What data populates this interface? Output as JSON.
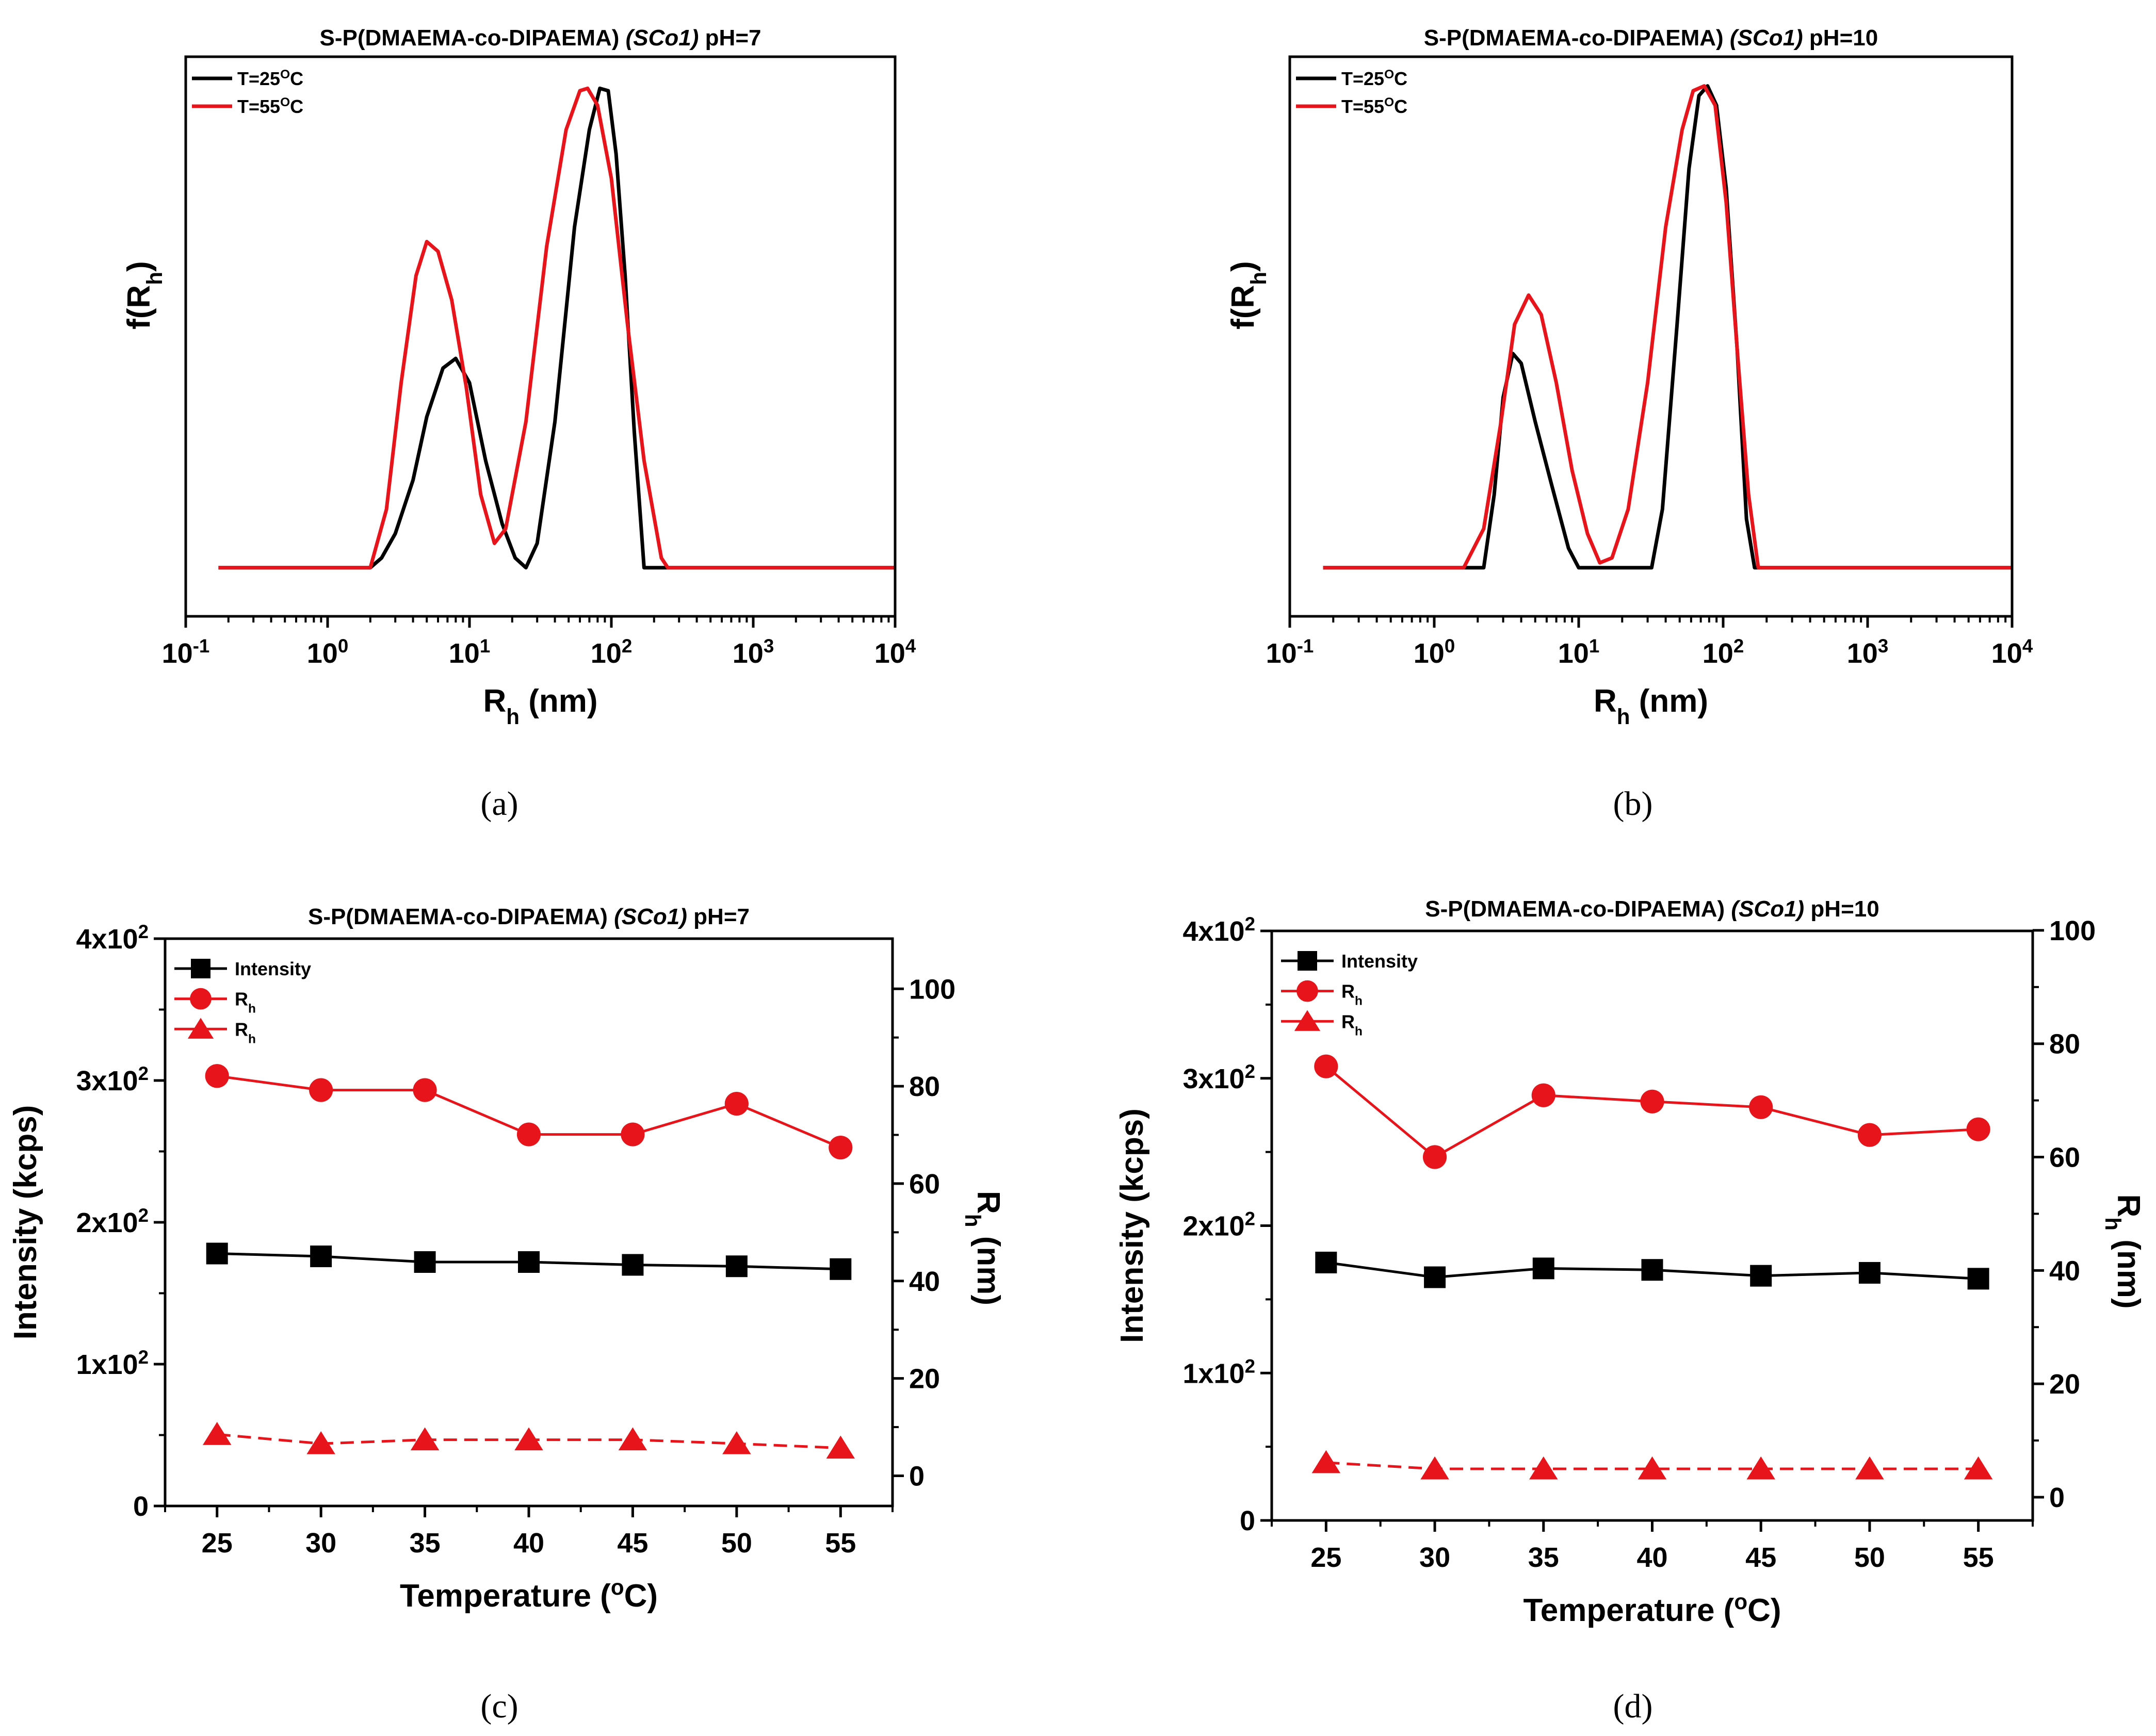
{
  "chart_data": [
    {
      "id": "a",
      "type": "line",
      "title": "S-P(DMAEMA-co-DIPAEMA) (SCo1) pH=7",
      "title_parts": {
        "prefix": "S-P(DMAEMA-co-DIPAEMA) ",
        "italic": "(SCo1)",
        "suffix": " pH=7"
      },
      "caption": "(a)",
      "xscale": "log",
      "xlim": [
        0.1,
        10000
      ],
      "xticks": [
        {
          "value": 0.1,
          "base": "10",
          "exp": "-1"
        },
        {
          "value": 1,
          "base": "10",
          "exp": "0"
        },
        {
          "value": 10,
          "base": "10",
          "exp": "1"
        },
        {
          "value": 100,
          "base": "10",
          "exp": "2"
        },
        {
          "value": 1000,
          "base": "10",
          "exp": "3"
        },
        {
          "value": 10000,
          "base": "10",
          "exp": "4"
        }
      ],
      "ylim": [
        -0.1,
        1.05
      ],
      "xlabel": {
        "main": "R",
        "sub": "h",
        "suffix": " (nm)"
      },
      "ylabel": {
        "prefix": "f(R",
        "sub": "h",
        "suffix": ")"
      },
      "legend": [
        {
          "prefix": "T=25",
          "sup": "O",
          "suffix": "C",
          "color": "#000000"
        },
        {
          "prefix": "T=55",
          "sup": "O",
          "suffix": "C",
          "color": "#e8141b"
        }
      ],
      "series": [
        {
          "name": "T=25°C",
          "color": "#000000",
          "points": [
            [
              0.17,
              0
            ],
            [
              2,
              0
            ],
            [
              2.4,
              0.02
            ],
            [
              3,
              0.07
            ],
            [
              4,
              0.18
            ],
            [
              5,
              0.31
            ],
            [
              6.5,
              0.41
            ],
            [
              8,
              0.43
            ],
            [
              10,
              0.38
            ],
            [
              13,
              0.22
            ],
            [
              17,
              0.09
            ],
            [
              21,
              0.02
            ],
            [
              25,
              0
            ],
            [
              30,
              0.05
            ],
            [
              40,
              0.3
            ],
            [
              55,
              0.7
            ],
            [
              70,
              0.9
            ],
            [
              83,
              0.985
            ],
            [
              95,
              0.98
            ],
            [
              108,
              0.85
            ],
            [
              125,
              0.6
            ],
            [
              145,
              0.28
            ],
            [
              170,
              0
            ],
            [
              10000,
              0
            ]
          ]
        },
        {
          "name": "T=55°C",
          "color": "#e8141b",
          "points": [
            [
              0.17,
              0
            ],
            [
              2,
              0
            ],
            [
              2.6,
              0.12
            ],
            [
              3.3,
              0.38
            ],
            [
              4.2,
              0.6
            ],
            [
              5,
              0.67
            ],
            [
              6,
              0.65
            ],
            [
              7.5,
              0.55
            ],
            [
              9.5,
              0.37
            ],
            [
              12,
              0.15
            ],
            [
              15,
              0.05
            ],
            [
              18,
              0.08
            ],
            [
              25,
              0.3
            ],
            [
              35,
              0.66
            ],
            [
              48,
              0.9
            ],
            [
              60,
              0.98
            ],
            [
              68,
              0.985
            ],
            [
              80,
              0.95
            ],
            [
              100,
              0.8
            ],
            [
              130,
              0.5
            ],
            [
              170,
              0.22
            ],
            [
              225,
              0.02
            ],
            [
              250,
              0
            ],
            [
              10000,
              0
            ]
          ]
        }
      ]
    },
    {
      "id": "b",
      "type": "line",
      "title": "S-P(DMAEMA-co-DIPAEMA) (SCo1) pH=10",
      "title_parts": {
        "prefix": "S-P(DMAEMA-co-DIPAEMA) ",
        "italic": "(SCo1)",
        "suffix": " pH=10"
      },
      "caption": "(b)",
      "xscale": "log",
      "xlim": [
        0.1,
        10000
      ],
      "xticks": [
        {
          "value": 0.1,
          "base": "10",
          "exp": "-1"
        },
        {
          "value": 1,
          "base": "10",
          "exp": "0"
        },
        {
          "value": 10,
          "base": "10",
          "exp": "1"
        },
        {
          "value": 100,
          "base": "10",
          "exp": "2"
        },
        {
          "value": 1000,
          "base": "10",
          "exp": "3"
        },
        {
          "value": 10000,
          "base": "10",
          "exp": "4"
        }
      ],
      "ylim": [
        -0.1,
        1.05
      ],
      "xlabel": {
        "main": "R",
        "sub": "h",
        "suffix": " (nm)"
      },
      "ylabel": {
        "prefix": "f(R",
        "sub": "h",
        "suffix": ")"
      },
      "legend": [
        {
          "prefix": "T=25",
          "sup": "O",
          "suffix": "C",
          "color": "#000000"
        },
        {
          "prefix": "T=55",
          "sup": "O",
          "suffix": "C",
          "color": "#e8141b"
        }
      ],
      "series": [
        {
          "name": "T=25°C",
          "color": "#000000",
          "points": [
            [
              0.17,
              0
            ],
            [
              2.2,
              0
            ],
            [
              2.6,
              0.15
            ],
            [
              3,
              0.35
            ],
            [
              3.5,
              0.44
            ],
            [
              4,
              0.42
            ],
            [
              5,
              0.3
            ],
            [
              6.5,
              0.17
            ],
            [
              8.5,
              0.04
            ],
            [
              10,
              0
            ],
            [
              32,
              0
            ],
            [
              38,
              0.12
            ],
            [
              48,
              0.5
            ],
            [
              58,
              0.82
            ],
            [
              68,
              0.97
            ],
            [
              78,
              0.99
            ],
            [
              90,
              0.95
            ],
            [
              105,
              0.78
            ],
            [
              125,
              0.45
            ],
            [
              145,
              0.1
            ],
            [
              165,
              0
            ],
            [
              10000,
              0
            ]
          ]
        },
        {
          "name": "T=55°C",
          "color": "#e8141b",
          "points": [
            [
              0.17,
              0
            ],
            [
              1.6,
              0
            ],
            [
              2.2,
              0.08
            ],
            [
              2.9,
              0.3
            ],
            [
              3.6,
              0.5
            ],
            [
              4.5,
              0.56
            ],
            [
              5.5,
              0.52
            ],
            [
              7,
              0.38
            ],
            [
              9,
              0.2
            ],
            [
              11.5,
              0.07
            ],
            [
              14,
              0.01
            ],
            [
              17,
              0.02
            ],
            [
              22,
              0.12
            ],
            [
              30,
              0.38
            ],
            [
              40,
              0.7
            ],
            [
              52,
              0.9
            ],
            [
              62,
              0.98
            ],
            [
              74,
              0.99
            ],
            [
              88,
              0.95
            ],
            [
              105,
              0.75
            ],
            [
              125,
              0.45
            ],
            [
              150,
              0.15
            ],
            [
              175,
              0
            ],
            [
              10000,
              0
            ]
          ]
        }
      ]
    },
    {
      "id": "c",
      "type": "line",
      "title": "S-P(DMAEMA-co-DIPAEMA) (SCo1) pH=7",
      "title_parts": {
        "prefix": "S-P(DMAEMA-co-DIPAEMA) ",
        "italic": "(SCo1)",
        "suffix": " pH=7"
      },
      "caption": "(c)",
      "x": [
        25,
        30,
        35,
        40,
        45,
        50,
        55
      ],
      "xlim": [
        22.5,
        57.5
      ],
      "xlabel": {
        "prefix": "Temperature (",
        "sup": "o",
        "suffix": "C)"
      },
      "ylabel_left": "Intensity (kcps)",
      "ylabel_right": {
        "main": "R",
        "sub": "h",
        "suffix": " (nm)"
      },
      "ylim_left": [
        0,
        400
      ],
      "ylim_right": [
        -6.2,
        110.3
      ],
      "yticks_left": [
        {
          "value": 0,
          "text": "0"
        },
        {
          "value": 100,
          "base": "1x10",
          "exp": "2"
        },
        {
          "value": 200,
          "base": "2x10",
          "exp": "2"
        },
        {
          "value": 300,
          "base": "3x10",
          "exp": "2"
        },
        {
          "value": 400,
          "base": "4x10",
          "exp": "2"
        }
      ],
      "yticks_right": [
        "0",
        "20",
        "40",
        "60",
        "80",
        "100"
      ],
      "legend": [
        {
          "label": "Intensity",
          "marker": "square",
          "color": "#000000"
        },
        {
          "main": "R",
          "sub": "h",
          "marker": "circle",
          "color": "#e8141b"
        },
        {
          "main": "R",
          "sub": "h",
          "marker": "triangle",
          "color": "#e8141b"
        }
      ],
      "series": [
        {
          "name": "Intensity",
          "axis": "left",
          "marker": "square",
          "color": "#000000",
          "dashed": false,
          "values": [
            178,
            176,
            172,
            172,
            170,
            169,
            167
          ]
        },
        {
          "name": "Rh",
          "axis": "right",
          "marker": "circle",
          "color": "#e8141b",
          "dashed": false,
          "values": [
            82.1,
            79.2,
            79.2,
            70.1,
            70.1,
            76.4,
            67.4
          ]
        },
        {
          "name": "Rh",
          "axis": "right",
          "marker": "triangle",
          "color": "#e8141b",
          "dashed": true,
          "values": [
            8.5,
            6.6,
            7.4,
            7.4,
            7.4,
            6.6,
            5.7
          ]
        }
      ]
    },
    {
      "id": "d",
      "type": "line",
      "title": "S-P(DMAEMA-co-DIPAEMA) (SCo1) pH=10",
      "title_parts": {
        "prefix": "S-P(DMAEMA-co-DIPAEMA) ",
        "italic": "(SCo1)",
        "suffix": " pH=10"
      },
      "caption": "(d)",
      "x": [
        25,
        30,
        35,
        40,
        45,
        50,
        55
      ],
      "xlim": [
        22.5,
        57.5
      ],
      "xlabel": {
        "prefix": "Temperature (",
        "sup": "o",
        "suffix": "C)"
      },
      "ylabel_left": "Intensity (kcps)",
      "ylabel_right": {
        "main": "R",
        "sub": "h",
        "suffix": " (nm)"
      },
      "ylim_left": [
        0,
        400
      ],
      "ylim_right": [
        -4.1,
        99.9
      ],
      "yticks_left": [
        {
          "value": 0,
          "text": "0"
        },
        {
          "value": 100,
          "base": "1x10",
          "exp": "2"
        },
        {
          "value": 200,
          "base": "2x10",
          "exp": "2"
        },
        {
          "value": 300,
          "base": "3x10",
          "exp": "2"
        },
        {
          "value": 400,
          "base": "4x10",
          "exp": "2"
        }
      ],
      "yticks_right": [
        "0",
        "20",
        "40",
        "60",
        "80",
        "100"
      ],
      "legend": [
        {
          "label": "Intensity",
          "marker": "square",
          "color": "#000000"
        },
        {
          "main": "R",
          "sub": "h",
          "marker": "circle",
          "color": "#e8141b"
        },
        {
          "main": "R",
          "sub": "h",
          "marker": "triangle",
          "color": "#e8141b"
        }
      ],
      "series": [
        {
          "name": "Intensity",
          "axis": "left",
          "marker": "square",
          "color": "#000000",
          "dashed": false,
          "values": [
            175,
            165,
            171,
            170,
            166,
            168,
            164
          ]
        },
        {
          "name": "Rh",
          "axis": "right",
          "marker": "circle",
          "color": "#e8141b",
          "dashed": false,
          "values": [
            76,
            60,
            70.9,
            69.8,
            68.8,
            63.9,
            64.9
          ]
        },
        {
          "name": "Rh",
          "axis": "right",
          "marker": "triangle",
          "color": "#e8141b",
          "dashed": true,
          "values": [
            6.1,
            5.0,
            5.0,
            5.0,
            5.0,
            5.0,
            5.0
          ]
        }
      ]
    }
  ]
}
